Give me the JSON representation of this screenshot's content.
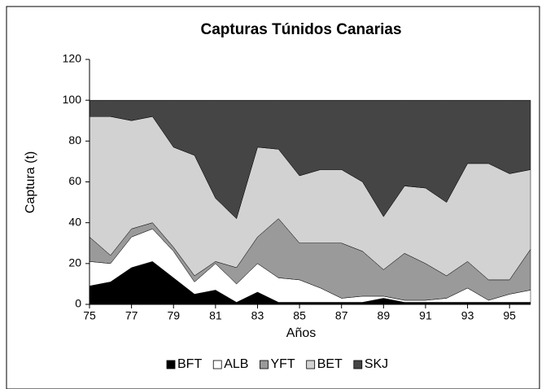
{
  "chart_data": {
    "type": "stacked_area",
    "title": "Capturas Túnidos Canarias",
    "xlabel": "Años",
    "ylabel": "Captura (t)",
    "x": [
      75,
      76,
      77,
      78,
      79,
      80,
      81,
      82,
      83,
      84,
      85,
      86,
      87,
      88,
      89,
      90,
      91,
      92,
      93,
      94,
      95,
      96
    ],
    "xlim": [
      75,
      96
    ],
    "xticks": [
      75,
      77,
      79,
      81,
      83,
      85,
      87,
      89,
      91,
      93,
      95
    ],
    "ylim": [
      0,
      120
    ],
    "yticks": [
      0,
      20,
      40,
      60,
      80,
      100,
      120
    ],
    "legend": "bottom",
    "series": [
      {
        "name": "BFT",
        "color": "#000000",
        "values": [
          9,
          11,
          18,
          21,
          13,
          5,
          7,
          1,
          6,
          1,
          1,
          1,
          1,
          1,
          3,
          1,
          1,
          1,
          1,
          1,
          1,
          1
        ]
      },
      {
        "name": "ALB",
        "color": "#ffffff",
        "values": [
          12,
          9,
          15,
          16,
          13,
          6,
          13,
          9,
          14,
          12,
          11,
          7,
          2,
          3,
          1,
          1,
          1,
          2,
          7,
          1,
          4,
          6
        ]
      },
      {
        "name": "YFT",
        "color": "#9a9a9a",
        "values": [
          12,
          4,
          4,
          3,
          2,
          3,
          1,
          8,
          13,
          29,
          18,
          22,
          27,
          22,
          13,
          23,
          18,
          11,
          13,
          10,
          7,
          20
        ]
      },
      {
        "name": "BET",
        "color": "#d2d2d2",
        "values": [
          59,
          68,
          53,
          52,
          49,
          59,
          31,
          24,
          44,
          34,
          33,
          36,
          36,
          34,
          26,
          33,
          37,
          36,
          48,
          57,
          52,
          39
        ]
      },
      {
        "name": "SKJ",
        "color": "#454545",
        "values": [
          8,
          8,
          10,
          8,
          23,
          27,
          48,
          58,
          23,
          24,
          37,
          34,
          34,
          40,
          57,
          42,
          43,
          50,
          31,
          31,
          36,
          34
        ]
      }
    ]
  }
}
